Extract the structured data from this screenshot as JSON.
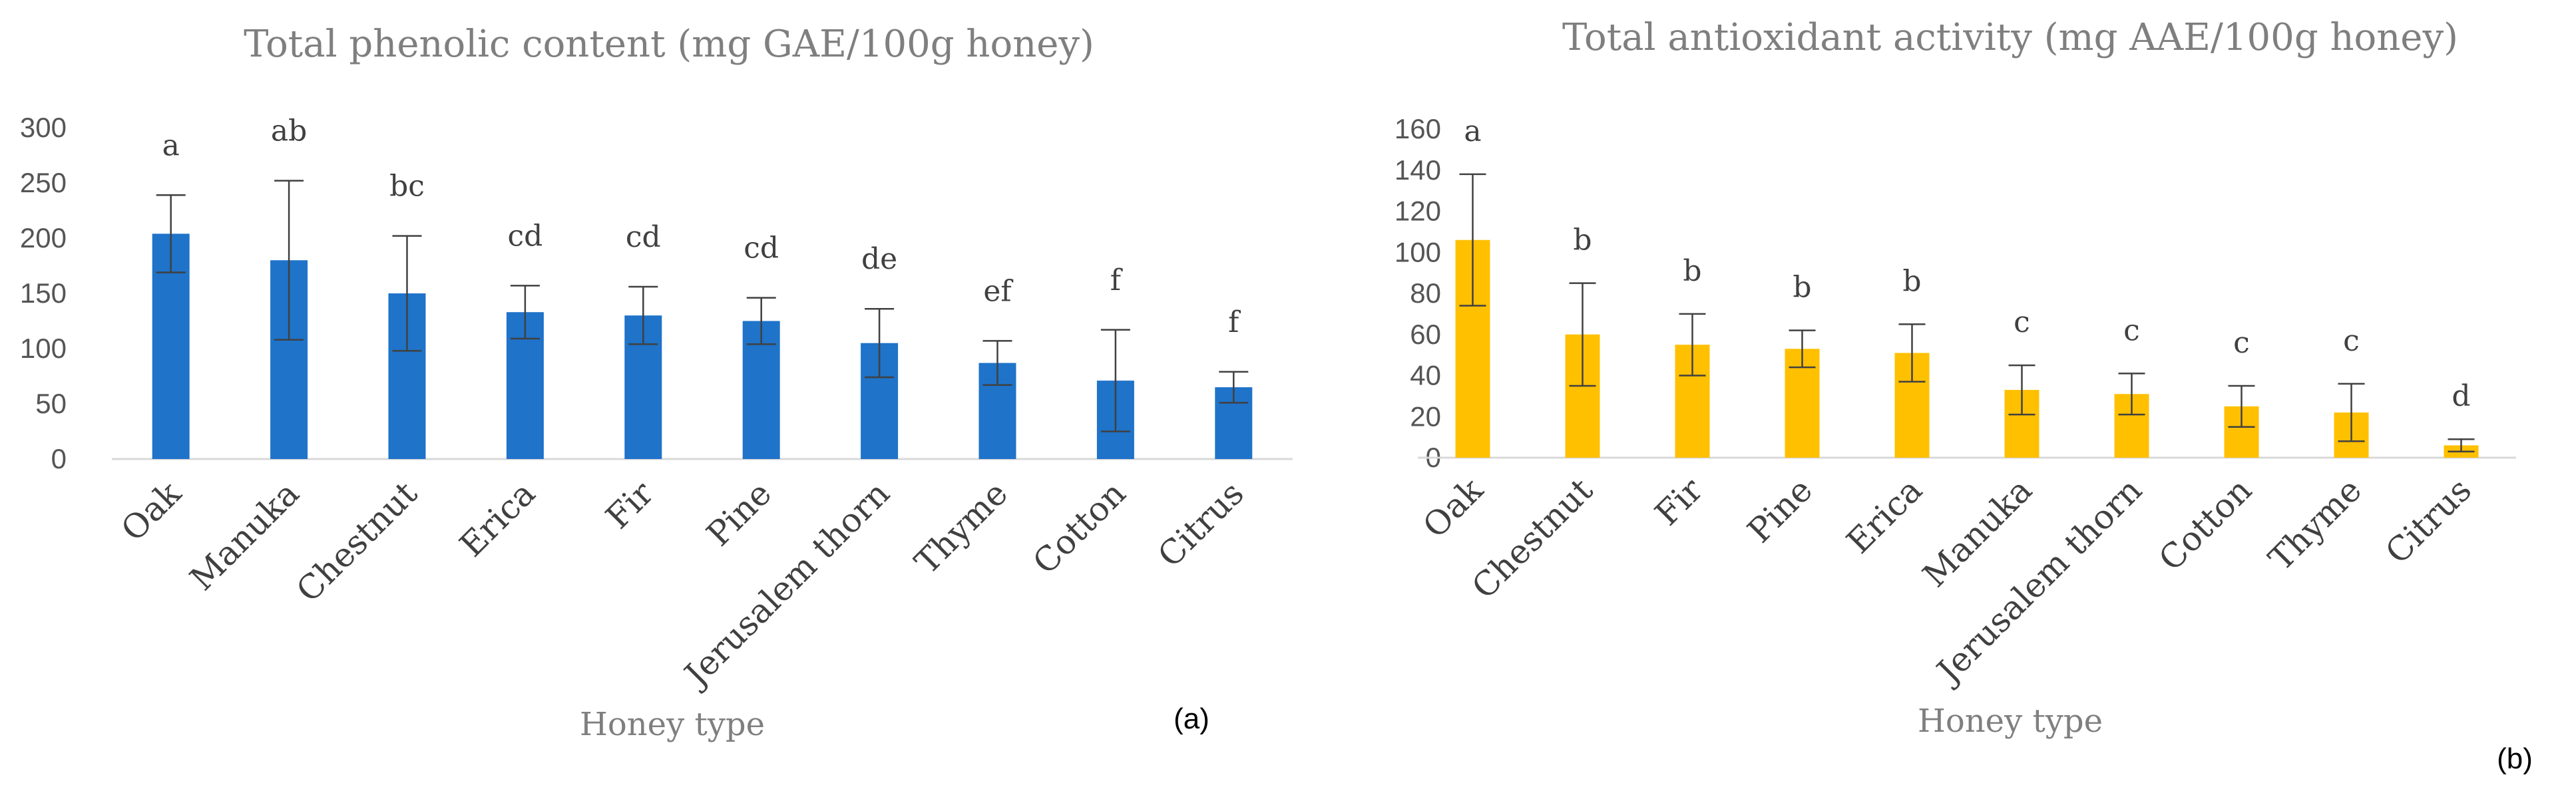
{
  "chart_data": [
    {
      "type": "bar",
      "title": "Total phenolic content (mg GAE/100g honey)",
      "xlabel": "Honey type",
      "ylabel": "",
      "panel_label": "(a)",
      "color": "#1f73c9",
      "ylim": [
        0,
        300
      ],
      "yticks": [
        "0",
        "50",
        "100",
        "150",
        "200",
        "250",
        "300"
      ],
      "categories": [
        "Oak",
        "Manuka",
        "Chestnut",
        "Erica",
        "Fir",
        "Pine",
        "Jerusalem thorn",
        "Thyme",
        "Cotton",
        "Citrus"
      ],
      "values": [
        204,
        180,
        150,
        133,
        130,
        125,
        105,
        87,
        71,
        65
      ],
      "errors": [
        35,
        72,
        52,
        24,
        26,
        21,
        31,
        20,
        46,
        14
      ],
      "letters": [
        "a",
        "ab",
        "bc",
        "cd",
        "cd",
        "cd",
        "de",
        "ef",
        "f",
        "f"
      ]
    },
    {
      "type": "bar",
      "title": "Total antioxidant activity (mg AAE/100g honey)",
      "xlabel": "Honey type",
      "ylabel": "",
      "panel_label": "(b)",
      "color": "#ffc000",
      "ylim": [
        0,
        160
      ],
      "yticks": [
        "0",
        "20",
        "40",
        "60",
        "80",
        "100",
        "120",
        "140",
        "160"
      ],
      "categories": [
        "Oak",
        "Chestnut",
        "Fir",
        "Pine",
        "Erica",
        "Manuka",
        "Jerusalem thorn",
        "Cotton",
        "Thyme",
        "Citrus"
      ],
      "values": [
        106,
        60,
        55,
        53,
        51,
        33,
        31,
        25,
        22,
        6
      ],
      "errors": [
        32,
        25,
        15,
        9,
        14,
        12,
        10,
        10,
        14,
        3
      ],
      "letters": [
        "a",
        "b",
        "b",
        "b",
        "b",
        "c",
        "c",
        "c",
        "c",
        "d"
      ]
    }
  ]
}
